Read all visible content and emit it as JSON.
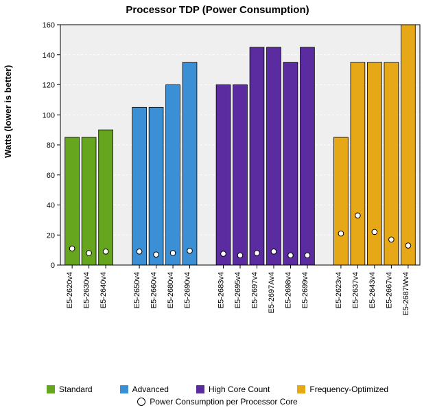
{
  "chart": {
    "type": "bar",
    "title": "Processor TDP (Power Consumption)",
    "title_fontsize": 15,
    "ylabel": "Watts (lower is better)",
    "ylabel_fontsize": 13,
    "ylim_min": 0,
    "ylim_max": 160,
    "ytick_step": 20,
    "yticks": [
      0,
      20,
      40,
      60,
      80,
      100,
      120,
      140,
      160
    ],
    "bar_width": 0.85,
    "cluster_gap": 1.0,
    "bar_stroke": "#000000",
    "bar_stroke_width": 0.8,
    "marker_color": "#ffffff",
    "marker_stroke": "#000000",
    "marker_radius": 3.8,
    "plot_bg": "#efefef",
    "grid_color": "#ffffff",
    "grid_width": 1,
    "grid_dash": "3,3",
    "axis_color": "#000000",
    "tick_fontsize": 11,
    "xlabel_fontsize": 11,
    "groups": [
      {
        "label": "Standard",
        "color": "#66a61e"
      },
      {
        "label": "Advanced",
        "color": "#3b8fd4"
      },
      {
        "label": "High Core Count",
        "color": "#5a2ca0"
      },
      {
        "label": "Frequency-Optimized",
        "color": "#e6a817"
      }
    ],
    "bars": [
      {
        "label": "E5-2620v4",
        "group": 0,
        "value": 85,
        "marker": 11
      },
      {
        "label": "E5-2630v4",
        "group": 0,
        "value": 85,
        "marker": 8
      },
      {
        "label": "E5-2640v4",
        "group": 0,
        "value": 90,
        "marker": 9
      },
      {
        "label": "E5-2650v4",
        "group": 1,
        "value": 105,
        "marker": 9
      },
      {
        "label": "E5-2660v4",
        "group": 1,
        "value": 105,
        "marker": 7
      },
      {
        "label": "E5-2680v4",
        "group": 1,
        "value": 120,
        "marker": 8
      },
      {
        "label": "E5-2690v4",
        "group": 1,
        "value": 135,
        "marker": 9.5
      },
      {
        "label": "E5-2683v4",
        "group": 2,
        "value": 120,
        "marker": 7.5
      },
      {
        "label": "E5-2695v4",
        "group": 2,
        "value": 120,
        "marker": 6.5
      },
      {
        "label": "E5-2697v4",
        "group": 2,
        "value": 145,
        "marker": 8
      },
      {
        "label": "E5-2697Av4",
        "group": 2,
        "value": 145,
        "marker": 9
      },
      {
        "label": "E5-2698v4",
        "group": 2,
        "value": 135,
        "marker": 6.5
      },
      {
        "label": "E5-2699v4",
        "group": 2,
        "value": 145,
        "marker": 6.5
      },
      {
        "label": "E5-2623v4",
        "group": 3,
        "value": 85,
        "marker": 21
      },
      {
        "label": "E5-2637v4",
        "group": 3,
        "value": 135,
        "marker": 33
      },
      {
        "label": "E5-2643v4",
        "group": 3,
        "value": 135,
        "marker": 22
      },
      {
        "label": "E5-2667v4",
        "group": 3,
        "value": 135,
        "marker": 17
      },
      {
        "label": "E5-2687Wv4",
        "group": 3,
        "value": 160,
        "marker": 13
      }
    ],
    "marker_legend_label": "Power Consumption per Processor Core"
  }
}
